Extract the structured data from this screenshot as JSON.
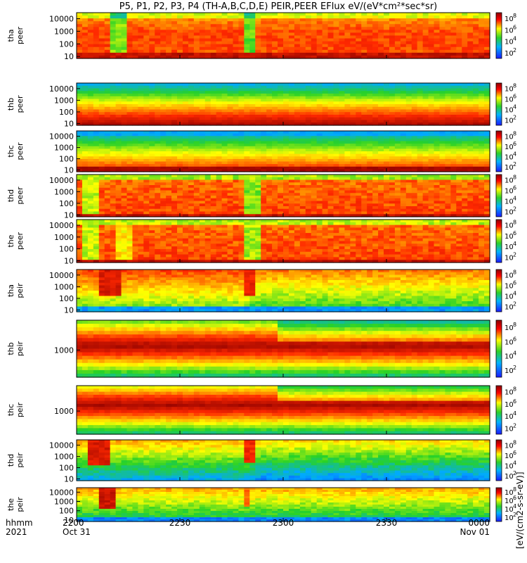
{
  "chart_data": {
    "type": "heatmap",
    "title": "P5, P1, P2, P3, P4 (TH-A,B,C,D,E) PEIR,PEER EFlux eV/(eV*cm²*sec*sr)",
    "x_tick_labels": [
      "2200",
      "2230",
      "2300",
      "2330",
      "0000"
    ],
    "x_tick_minutes": [
      0,
      30,
      60,
      90,
      120
    ],
    "x_date_labels": [
      "Oct 31",
      "Nov 01"
    ],
    "x_label_row1": "hhmm",
    "x_label_row2": "2021",
    "colorbar_label": "[eV/(cm2-s-sr-eV)]",
    "colorbar_tick_exponents": [
      "2",
      "4",
      "6",
      "8"
    ],
    "colors": {
      "low": "#1a1aff",
      "mid": "#2ad12a",
      "high": "#ffff00",
      "max": "#ff0000",
      "top": "#8b0000"
    },
    "panels": [
      {
        "probe": "tha",
        "species": "peer",
        "y_ticks": [
          "10000",
          "1000",
          "100",
          "10"
        ],
        "y_tick_values": [
          10000,
          1000,
          100,
          10
        ],
        "ylim": [
          7,
          30000
        ],
        "log_y": true
      },
      {
        "probe": "thb",
        "species": "peer",
        "y_ticks": [
          "10000",
          "1000",
          "100",
          "10"
        ],
        "y_tick_values": [
          10000,
          1000,
          100,
          10
        ],
        "ylim": [
          7,
          30000
        ],
        "log_y": true
      },
      {
        "probe": "thc",
        "species": "peer",
        "y_ticks": [
          "10000",
          "1000",
          "100",
          "10"
        ],
        "y_tick_values": [
          10000,
          1000,
          100,
          10
        ],
        "ylim": [
          7,
          30000
        ],
        "log_y": true
      },
      {
        "probe": "thd",
        "species": "peer",
        "y_ticks": [
          "10000",
          "1000",
          "100",
          "10"
        ],
        "y_tick_values": [
          10000,
          1000,
          100,
          10
        ],
        "ylim": [
          7,
          30000
        ],
        "log_y": true
      },
      {
        "probe": "the",
        "species": "peer",
        "y_ticks": [
          "10000",
          "1000",
          "100",
          "10"
        ],
        "y_tick_values": [
          10000,
          1000,
          100,
          10
        ],
        "ylim": [
          7,
          30000
        ],
        "log_y": true
      },
      {
        "probe": "tha",
        "species": "peir",
        "y_ticks": [
          "10000",
          "1000",
          "100",
          "10"
        ],
        "y_tick_values": [
          10000,
          1000,
          100,
          10
        ],
        "ylim": [
          7,
          30000
        ],
        "log_y": true
      },
      {
        "probe": "thb",
        "species": "peir",
        "y_ticks": [
          "1000"
        ],
        "y_tick_values": [
          1000
        ],
        "ylim": [
          150,
          8000
        ],
        "log_y": true
      },
      {
        "probe": "thc",
        "species": "peir",
        "y_ticks": [
          "1000"
        ],
        "y_tick_values": [
          1000
        ],
        "ylim": [
          150,
          8000
        ],
        "log_y": true
      },
      {
        "probe": "thd",
        "species": "peir",
        "y_ticks": [
          "10000",
          "1000",
          "100",
          "10"
        ],
        "y_tick_values": [
          10000,
          1000,
          100,
          10
        ],
        "ylim": [
          7,
          30000
        ],
        "log_y": true
      },
      {
        "probe": "the",
        "species": "peir",
        "y_ticks": [
          "10000",
          "1000",
          "100",
          "10"
        ],
        "y_tick_values": [
          10000,
          1000,
          100,
          10
        ],
        "ylim": [
          7,
          30000
        ],
        "log_y": true
      }
    ]
  }
}
